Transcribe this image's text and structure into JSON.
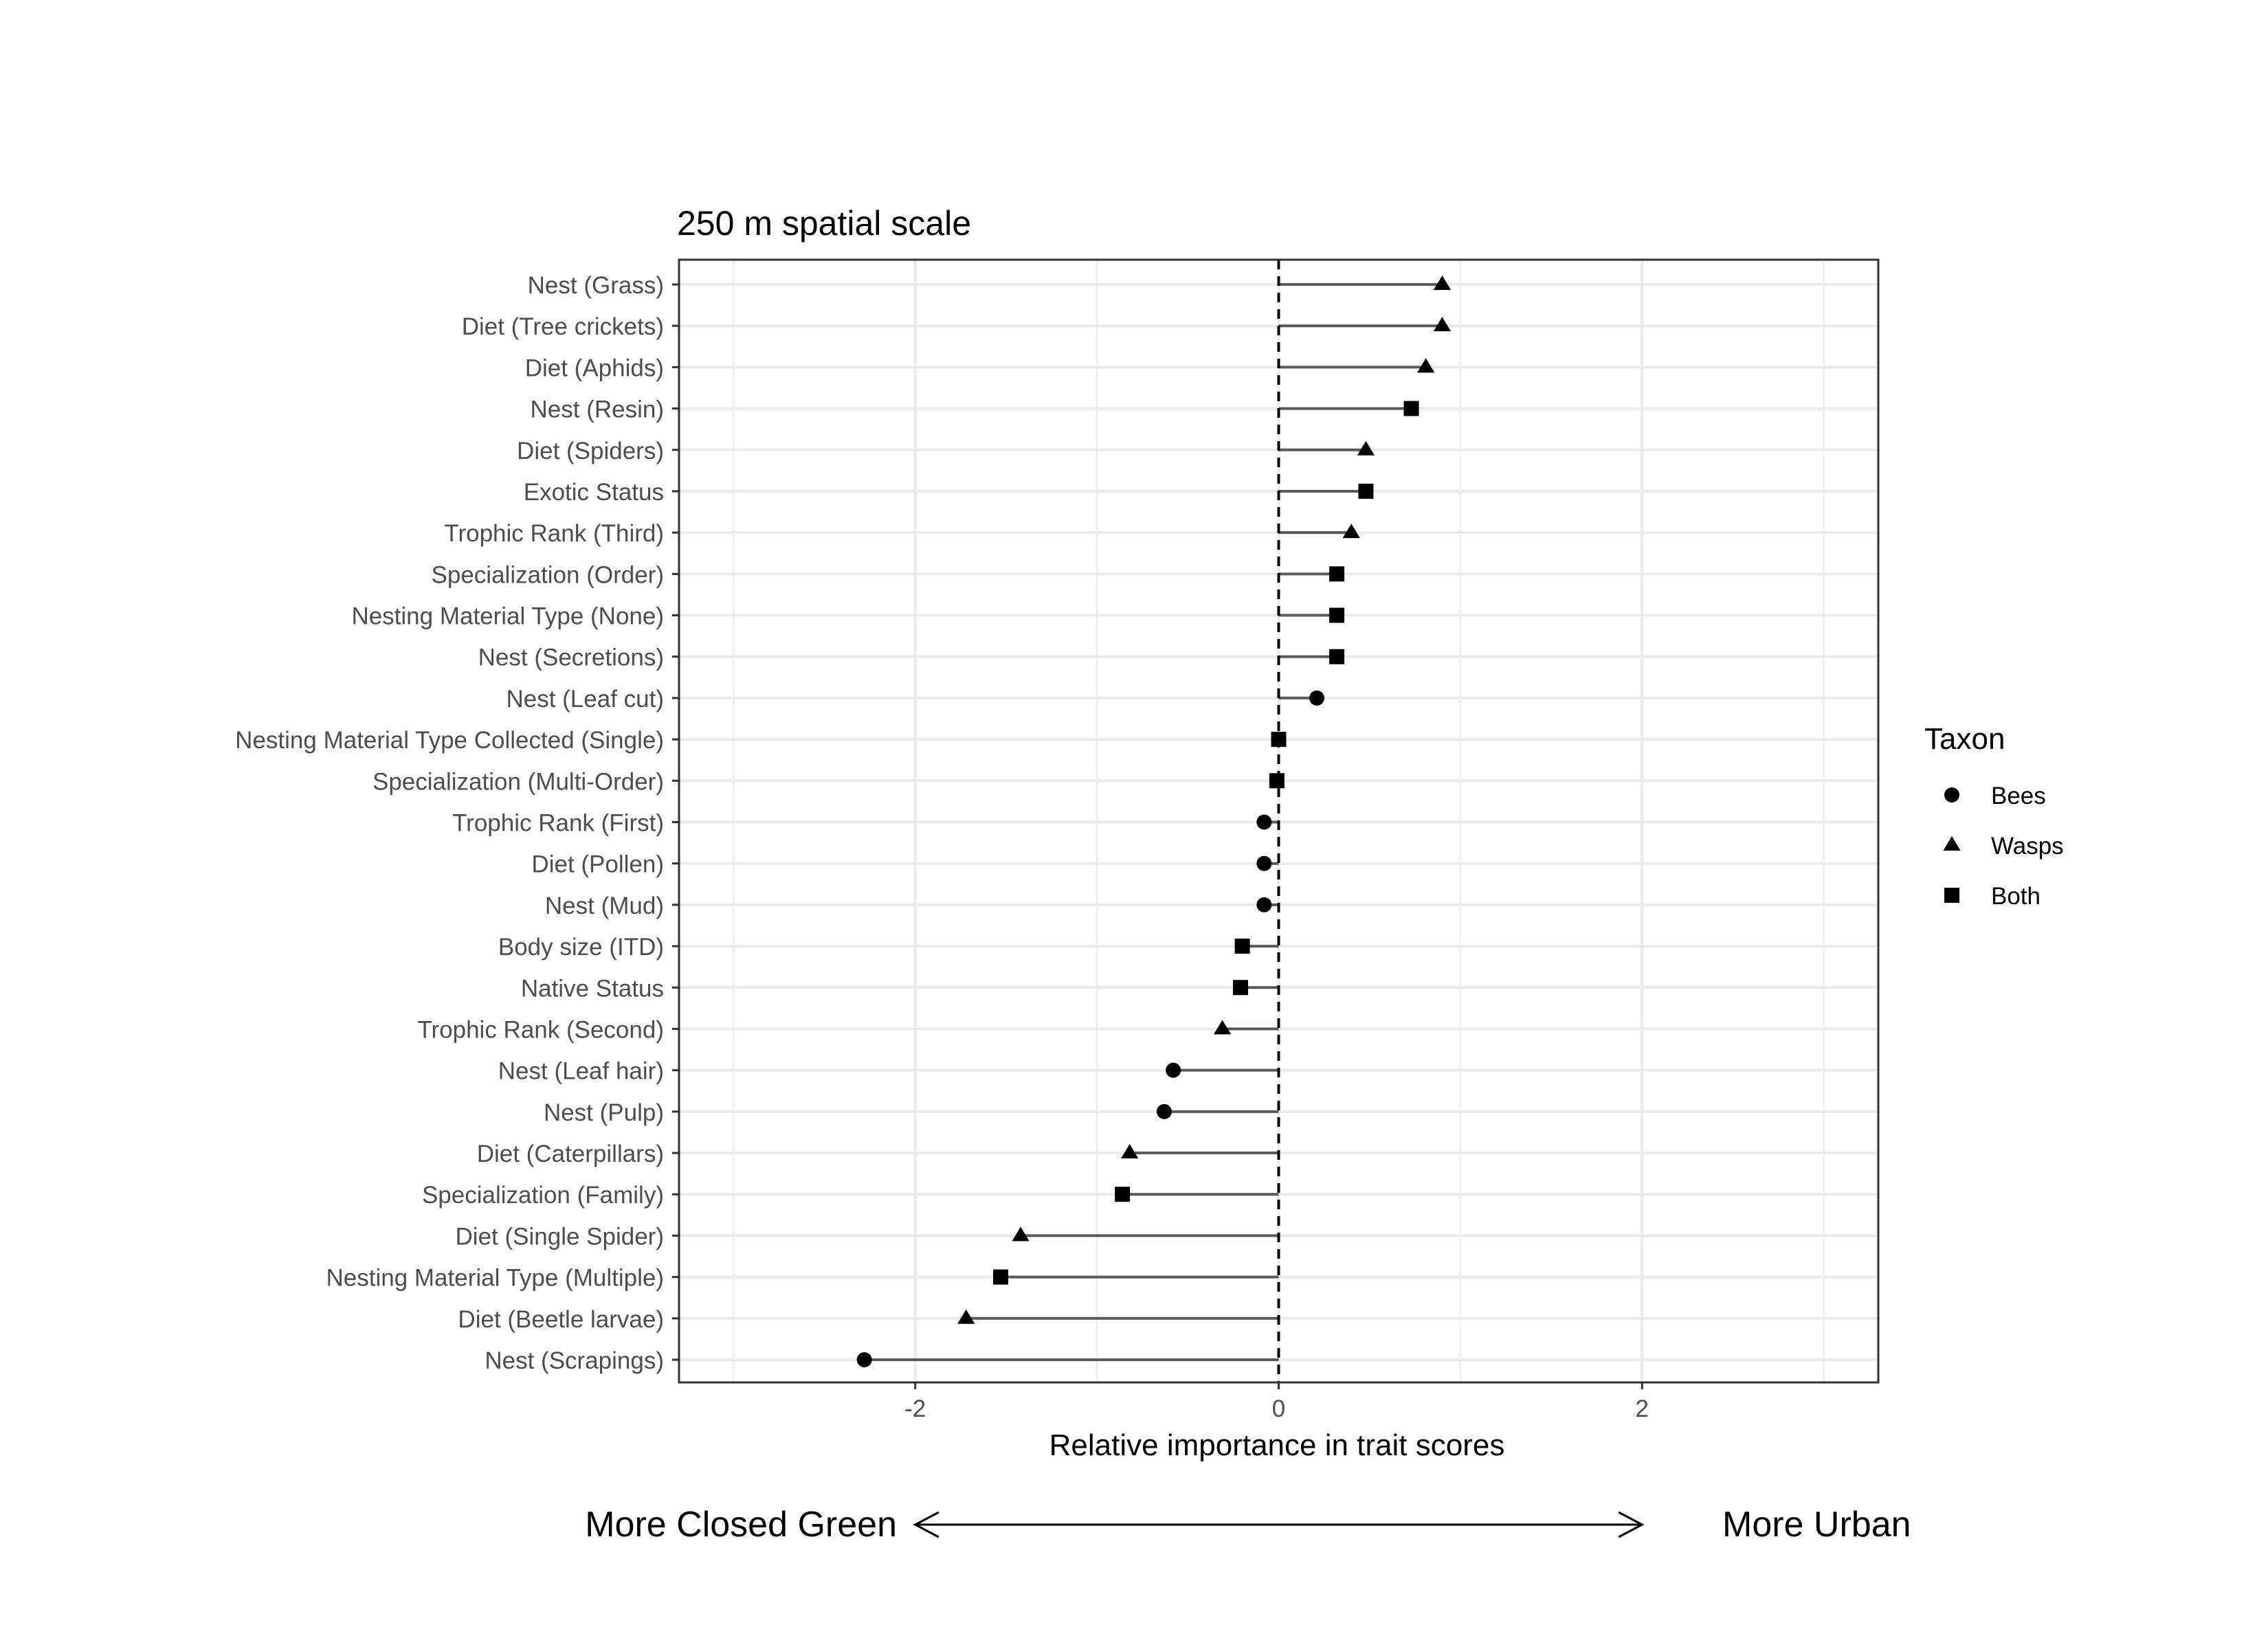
{
  "chart_data": {
    "type": "lollipop",
    "title": "250 m spatial scale",
    "xlabel": "Relative importance in trait scores",
    "ylabel": "",
    "xlim": [
      -3.3,
      3.3
    ],
    "x_ticks": [
      -2,
      0,
      2
    ],
    "x_tick_labels": [
      "-2",
      "0",
      "2"
    ],
    "reference_line": 0,
    "grid": true,
    "legend": {
      "title": "Taxon",
      "position": "right",
      "entries": [
        {
          "name": "Bees",
          "shape": "circle"
        },
        {
          "name": "Wasps",
          "shape": "triangle"
        },
        {
          "name": "Both",
          "shape": "square"
        }
      ]
    },
    "categories": [
      "Nest (Grass)",
      "Diet (Tree crickets)",
      "Diet (Aphids)",
      "Nest (Resin)",
      "Diet (Spiders)",
      "Exotic Status",
      "Trophic Rank (Third)",
      "Specialization (Order)",
      "Nesting Material Type (None)",
      "Nest (Secretions)",
      "Nest (Leaf cut)",
      "Nesting Material Type Collected (Single)",
      "Specialization (Multi-Order)",
      "Trophic Rank (First)",
      "Diet (Pollen)",
      "Nest (Mud)",
      "Body size (ITD)",
      "Native Status",
      "Trophic Rank (Second)",
      "Nest (Leaf hair)",
      "Nest (Pulp)",
      "Diet (Caterpillars)",
      "Specialization (Family)",
      "Diet (Single Spider)",
      "Nesting Material Type (Multiple)",
      "Diet (Beetle larvae)",
      "Nest (Scrapings)"
    ],
    "values": [
      0.9,
      0.9,
      0.81,
      0.73,
      0.48,
      0.48,
      0.4,
      0.32,
      0.32,
      0.32,
      0.21,
      0.0,
      -0.01,
      -0.08,
      -0.08,
      -0.08,
      -0.2,
      -0.21,
      -0.31,
      -0.58,
      -0.63,
      -0.82,
      -0.86,
      -1.42,
      -1.53,
      -1.72,
      -2.28
    ],
    "taxon": [
      "Wasps",
      "Wasps",
      "Wasps",
      "Both",
      "Wasps",
      "Both",
      "Wasps",
      "Both",
      "Both",
      "Both",
      "Bees",
      "Both",
      "Both",
      "Bees",
      "Bees",
      "Bees",
      "Both",
      "Both",
      "Wasps",
      "Bees",
      "Bees",
      "Wasps",
      "Both",
      "Wasps",
      "Both",
      "Wasps",
      "Bees"
    ],
    "annotation": {
      "left_label": "More Closed Green",
      "right_label": "More Urban",
      "arrow_from": -2,
      "arrow_to": 2
    }
  },
  "colors": {
    "points": "#000000",
    "segments": "#5a5a5a",
    "grid": "#ebebeb",
    "panel_border": "#333333",
    "axis_text": "#4d4d4d"
  }
}
